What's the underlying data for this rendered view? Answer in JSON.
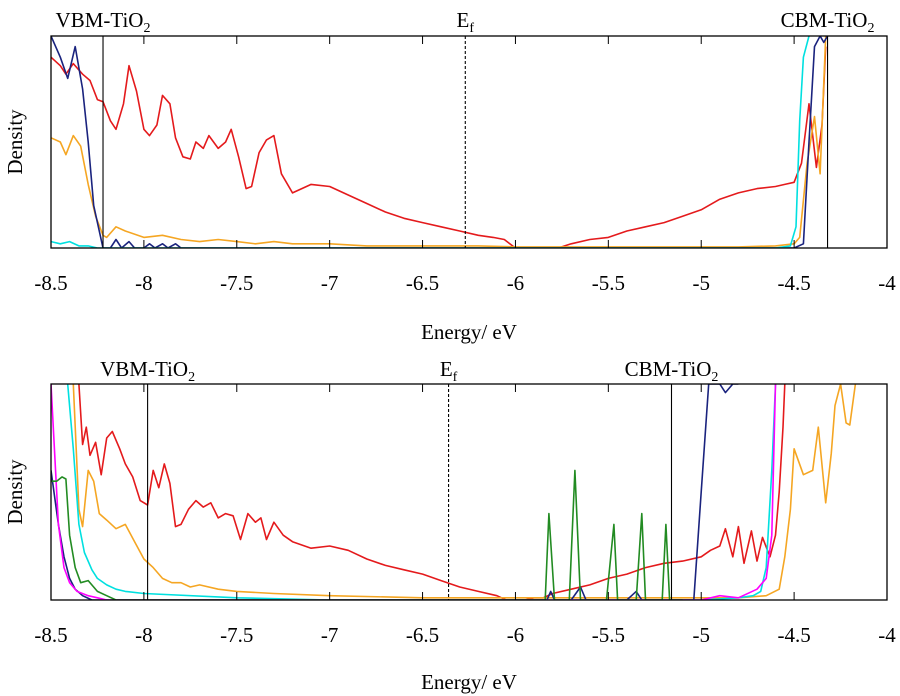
{
  "chart_data": [
    {
      "type": "line",
      "panel": "top",
      "xlabel": "Energy/ eV",
      "ylabel": "Density",
      "xlim": [
        -8.5,
        -4
      ],
      "ylim": [
        0,
        1
      ],
      "xticks": [
        "-8.5",
        "-8",
        "-7.5",
        "-7",
        "-6.5",
        "-6",
        "-5.5",
        "-5",
        "-4.5",
        "-4"
      ],
      "grid": false,
      "annotations": [
        {
          "text": "VBM-TiO",
          "sub": "2",
          "x": -8.22,
          "style": "solid"
        },
        {
          "text": "E",
          "sub": "f",
          "x": -6.27,
          "style": "dashed"
        },
        {
          "text": "CBM-TiO",
          "sub": "2",
          "x": -4.32,
          "style": "solid"
        }
      ],
      "series": [
        {
          "color": "#e41a1c",
          "x": [
            -8.5,
            -8.45,
            -8.42,
            -8.38,
            -8.33,
            -8.29,
            -8.25,
            -8.22,
            -8.18,
            -8.15,
            -8.11,
            -8.08,
            -8.04,
            -8.0,
            -7.97,
            -7.93,
            -7.9,
            -7.86,
            -7.83,
            -7.79,
            -7.75,
            -7.72,
            -7.68,
            -7.65,
            -7.6,
            -7.56,
            -7.53,
            -7.49,
            -7.45,
            -7.42,
            -7.38,
            -7.34,
            -7.3,
            -7.26,
            -7.2,
            -7.1,
            -7.0,
            -6.9,
            -6.8,
            -6.7,
            -6.6,
            -6.5,
            -6.4,
            -6.3,
            -6.2,
            -6.12,
            -6.06,
            -6.0
          ],
          "y": [
            0.9,
            0.86,
            0.82,
            0.87,
            0.82,
            0.79,
            0.7,
            0.69,
            0.6,
            0.56,
            0.68,
            0.86,
            0.74,
            0.56,
            0.53,
            0.58,
            0.72,
            0.68,
            0.52,
            0.43,
            0.42,
            0.5,
            0.47,
            0.53,
            0.47,
            0.5,
            0.56,
            0.43,
            0.28,
            0.29,
            0.45,
            0.51,
            0.53,
            0.35,
            0.26,
            0.3,
            0.29,
            0.25,
            0.21,
            0.17,
            0.14,
            0.12,
            0.1,
            0.08,
            0.06,
            0.05,
            0.04,
            0.0
          ]
        },
        {
          "color": "#e41a1c",
          "x": [
            -5.77,
            -5.7,
            -5.6,
            -5.5,
            -5.4,
            -5.3,
            -5.2,
            -5.1,
            -5.0,
            -4.9,
            -4.8,
            -4.7,
            -4.6,
            -4.55,
            -4.5,
            -4.46,
            -4.42,
            -4.38,
            -4.35,
            -4.33
          ],
          "y": [
            0.0,
            0.02,
            0.04,
            0.05,
            0.08,
            0.1,
            0.12,
            0.15,
            0.18,
            0.23,
            0.26,
            0.28,
            0.29,
            0.3,
            0.31,
            0.4,
            0.68,
            0.38,
            0.58,
            0.95
          ]
        },
        {
          "color": "#f5a623",
          "x": [
            -8.5,
            -8.45,
            -8.42,
            -8.38,
            -8.34,
            -8.3,
            -8.26,
            -8.22,
            -8.2,
            -8.15,
            -8.1,
            -8.0,
            -7.9,
            -7.8,
            -7.7,
            -7.6,
            -7.5,
            -7.4,
            -7.3,
            -7.2,
            -7.0,
            -6.8,
            -6.6,
            -6.4,
            -6.2,
            -6.0,
            -5.8,
            -5.6,
            -5.4,
            -5.2,
            -5.0,
            -4.8,
            -4.6,
            -4.5,
            -4.47,
            -4.43,
            -4.39,
            -4.36,
            -4.33
          ],
          "y": [
            0.52,
            0.5,
            0.44,
            0.53,
            0.48,
            0.3,
            0.15,
            0.06,
            0.05,
            0.1,
            0.08,
            0.05,
            0.06,
            0.04,
            0.03,
            0.04,
            0.03,
            0.02,
            0.03,
            0.02,
            0.02,
            0.01,
            0.01,
            0.01,
            0.01,
            0.005,
            0.005,
            0.005,
            0.005,
            0.005,
            0.005,
            0.005,
            0.01,
            0.02,
            0.05,
            0.4,
            0.62,
            0.35,
            1.0
          ]
        },
        {
          "color": "#1a237e",
          "x": [
            -8.5,
            -8.45,
            -8.41,
            -8.37,
            -8.33,
            -8.3,
            -8.27,
            -8.22,
            -8.18,
            -8.15,
            -8.12,
            -8.08,
            -8.05,
            -8.0,
            -7.97,
            -7.94,
            -7.9,
            -7.87,
            -7.83,
            -7.8,
            -7.6,
            -7.0,
            -6.0,
            -5.0,
            -4.5,
            -4.45,
            -4.42,
            -4.39,
            -4.36,
            -4.34,
            -4.32
          ],
          "y": [
            1.0,
            0.9,
            0.8,
            0.95,
            0.75,
            0.5,
            0.2,
            0.0,
            0.0,
            0.04,
            0.0,
            0.03,
            0.0,
            0.0,
            0.02,
            0.0,
            0.02,
            0.0,
            0.02,
            0.0,
            0.0,
            0.0,
            0.0,
            0.0,
            0.0,
            0.02,
            0.5,
            0.95,
            1.0,
            0.97,
            1.0
          ]
        },
        {
          "color": "#00e0e0",
          "x": [
            -8.5,
            -8.45,
            -8.4,
            -8.35,
            -8.3,
            -8.25,
            -8.2,
            -7.5,
            -6.0,
            -5.0,
            -4.6,
            -4.52,
            -4.49,
            -4.47,
            -4.45,
            -4.42
          ],
          "y": [
            0.03,
            0.02,
            0.03,
            0.01,
            0.01,
            0.0,
            0.0,
            0.0,
            0.0,
            0.0,
            0.0,
            0.01,
            0.1,
            0.6,
            0.9,
            1.0
          ]
        }
      ]
    },
    {
      "type": "line",
      "panel": "bottom",
      "xlabel": "Energy/ eV",
      "ylabel": "Density",
      "xlim": [
        -8.5,
        -4
      ],
      "ylim": [
        0,
        1
      ],
      "xticks": [
        "-8.5",
        "-8",
        "-7.5",
        "-7",
        "-6.5",
        "-6",
        "-5.5",
        "-5",
        "-4.5",
        "-4"
      ],
      "grid": false,
      "annotations": [
        {
          "text": "VBM-TiO",
          "sub": "2",
          "x": -7.98,
          "style": "solid"
        },
        {
          "text": "E",
          "sub": "f",
          "x": -6.36,
          "style": "dashed"
        },
        {
          "text": "CBM-TiO",
          "sub": "2",
          "x": -5.16,
          "style": "solid"
        }
      ],
      "series": [
        {
          "color": "#e41a1c",
          "x": [
            -8.35,
            -8.33,
            -8.31,
            -8.29,
            -8.26,
            -8.23,
            -8.2,
            -8.17,
            -8.13,
            -8.1,
            -8.06,
            -8.02,
            -7.98,
            -7.95,
            -7.92,
            -7.89,
            -7.86,
            -7.83,
            -7.8,
            -7.76,
            -7.72,
            -7.68,
            -7.64,
            -7.6,
            -7.56,
            -7.52,
            -7.48,
            -7.44,
            -7.4,
            -7.37,
            -7.34,
            -7.3,
            -7.25,
            -7.2,
            -7.1,
            -7.0,
            -6.9,
            -6.8,
            -6.7,
            -6.6,
            -6.5,
            -6.4,
            -6.3,
            -6.2,
            -6.1,
            -6.05,
            -6.0,
            -5.95,
            -5.9,
            -5.85,
            -5.8,
            -5.7,
            -5.6,
            -5.5,
            -5.4,
            -5.3,
            -5.2,
            -5.1,
            -5.0,
            -4.95,
            -4.9,
            -4.87,
            -4.83,
            -4.8,
            -4.77,
            -4.73,
            -4.7,
            -4.67,
            -4.63,
            -4.6,
            -4.58,
            -4.56,
            -4.55
          ],
          "y": [
            1.0,
            0.72,
            0.8,
            0.67,
            0.73,
            0.58,
            0.75,
            0.78,
            0.7,
            0.63,
            0.57,
            0.46,
            0.44,
            0.6,
            0.52,
            0.63,
            0.54,
            0.34,
            0.35,
            0.42,
            0.46,
            0.43,
            0.45,
            0.38,
            0.4,
            0.39,
            0.28,
            0.4,
            0.36,
            0.38,
            0.28,
            0.36,
            0.3,
            0.27,
            0.24,
            0.25,
            0.23,
            0.19,
            0.16,
            0.14,
            0.12,
            0.09,
            0.06,
            0.04,
            0.02,
            0.0,
            0.0,
            0.0,
            0.01,
            0.01,
            0.03,
            0.05,
            0.07,
            0.1,
            0.12,
            0.15,
            0.17,
            0.18,
            0.2,
            0.23,
            0.25,
            0.33,
            0.2,
            0.34,
            0.17,
            0.32,
            0.18,
            0.29,
            0.2,
            0.3,
            0.5,
            0.8,
            1.0
          ]
        },
        {
          "color": "#f5a623",
          "x": [
            -8.38,
            -8.35,
            -8.33,
            -8.3,
            -8.27,
            -8.24,
            -8.2,
            -8.15,
            -8.1,
            -8.05,
            -8.0,
            -7.95,
            -7.9,
            -7.85,
            -7.8,
            -7.75,
            -7.7,
            -7.6,
            -7.5,
            -7.3,
            -7.0,
            -6.5,
            -6.0,
            -5.5,
            -5.0,
            -4.8,
            -4.65,
            -4.58,
            -4.55,
            -4.52,
            -4.5,
            -4.45,
            -4.4,
            -4.37,
            -4.33,
            -4.3,
            -4.28,
            -4.25,
            -4.22,
            -4.2,
            -4.17
          ],
          "y": [
            1.0,
            0.42,
            0.34,
            0.6,
            0.55,
            0.4,
            0.37,
            0.33,
            0.35,
            0.27,
            0.19,
            0.15,
            0.1,
            0.08,
            0.08,
            0.06,
            0.07,
            0.05,
            0.04,
            0.03,
            0.02,
            0.01,
            0.01,
            0.01,
            0.01,
            0.01,
            0.02,
            0.05,
            0.2,
            0.42,
            0.7,
            0.58,
            0.6,
            0.8,
            0.45,
            0.68,
            0.9,
            1.0,
            0.82,
            0.81,
            1.0
          ]
        },
        {
          "color": "#1a237e",
          "x": [
            -8.5,
            -8.46,
            -8.43,
            -8.4,
            -8.37,
            -8.33,
            -8.28,
            -8.2,
            -8.0,
            -7.0,
            -6.0,
            -5.83,
            -5.81,
            -5.79,
            -5.7,
            -5.65,
            -5.62,
            -5.58,
            -5.4,
            -5.35,
            -5.32,
            -5.3,
            -5.1,
            -5.04,
            -5.0,
            -4.96,
            -4.9,
            -4.87,
            -4.83,
            -4.8
          ],
          "y": [
            0.6,
            0.35,
            0.2,
            0.1,
            0.05,
            0.02,
            0.0,
            0.0,
            0.0,
            0.0,
            0.0,
            0.0,
            0.04,
            0.0,
            0.0,
            0.06,
            0.0,
            0.0,
            0.0,
            0.04,
            0.0,
            0.0,
            0.0,
            0.0,
            0.5,
            1.0,
            1.0,
            0.96,
            1.0,
            1.0
          ]
        },
        {
          "color": "#00e0e0",
          "x": [
            -8.41,
            -8.38,
            -8.35,
            -8.32,
            -8.28,
            -8.25,
            -8.2,
            -8.15,
            -8.1,
            -8.0,
            -7.5,
            -7.0,
            -6.0,
            -5.0,
            -4.8,
            -4.72,
            -4.68,
            -4.65,
            -4.62,
            -4.6
          ],
          "y": [
            1.0,
            0.7,
            0.35,
            0.22,
            0.14,
            0.1,
            0.07,
            0.05,
            0.04,
            0.03,
            0.01,
            0.0,
            0.0,
            0.0,
            0.01,
            0.02,
            0.04,
            0.15,
            0.6,
            1.0
          ]
        },
        {
          "color": "#ff00ff",
          "x": [
            -8.5,
            -8.46,
            -8.43,
            -8.4,
            -8.36,
            -8.3,
            -8.25,
            -8.2,
            -8.0,
            -7.0,
            -6.0,
            -5.0,
            -4.9,
            -4.8,
            -4.7,
            -4.65,
            -4.62,
            -4.6
          ],
          "y": [
            1.0,
            0.35,
            0.15,
            0.08,
            0.04,
            0.02,
            0.01,
            0.0,
            0.0,
            0.0,
            0.0,
            0.0,
            0.02,
            0.01,
            0.05,
            0.1,
            0.3,
            1.0
          ]
        },
        {
          "color": "#228b22",
          "x": [
            -8.5,
            -8.47,
            -8.44,
            -8.42,
            -8.4,
            -8.37,
            -8.34,
            -8.3,
            -8.25,
            -8.2,
            -8.15,
            -8.0,
            -6.0,
            -5.84,
            -5.82,
            -5.79,
            -5.76,
            -5.71,
            -5.68,
            -5.65,
            -5.63,
            -5.6,
            -5.55,
            -5.51,
            -5.47,
            -5.45,
            -5.43,
            -5.41,
            -5.38,
            -5.35,
            -5.32,
            -5.3,
            -5.28,
            -5.25,
            -5.21,
            -5.19,
            -5.17,
            -5.15,
            -5.13,
            -5.1
          ],
          "y": [
            0.55,
            0.55,
            0.57,
            0.56,
            0.3,
            0.15,
            0.08,
            0.09,
            0.04,
            0.02,
            0.0,
            0.0,
            0.0,
            0.0,
            0.4,
            0.0,
            0.0,
            0.0,
            0.6,
            0.0,
            0.0,
            0.0,
            0.0,
            0.0,
            0.35,
            0.0,
            0.0,
            0.0,
            0.0,
            0.0,
            0.4,
            0.0,
            0.0,
            0.0,
            0.0,
            0.35,
            0.0,
            0.0,
            0.0,
            0.0
          ]
        }
      ]
    }
  ]
}
